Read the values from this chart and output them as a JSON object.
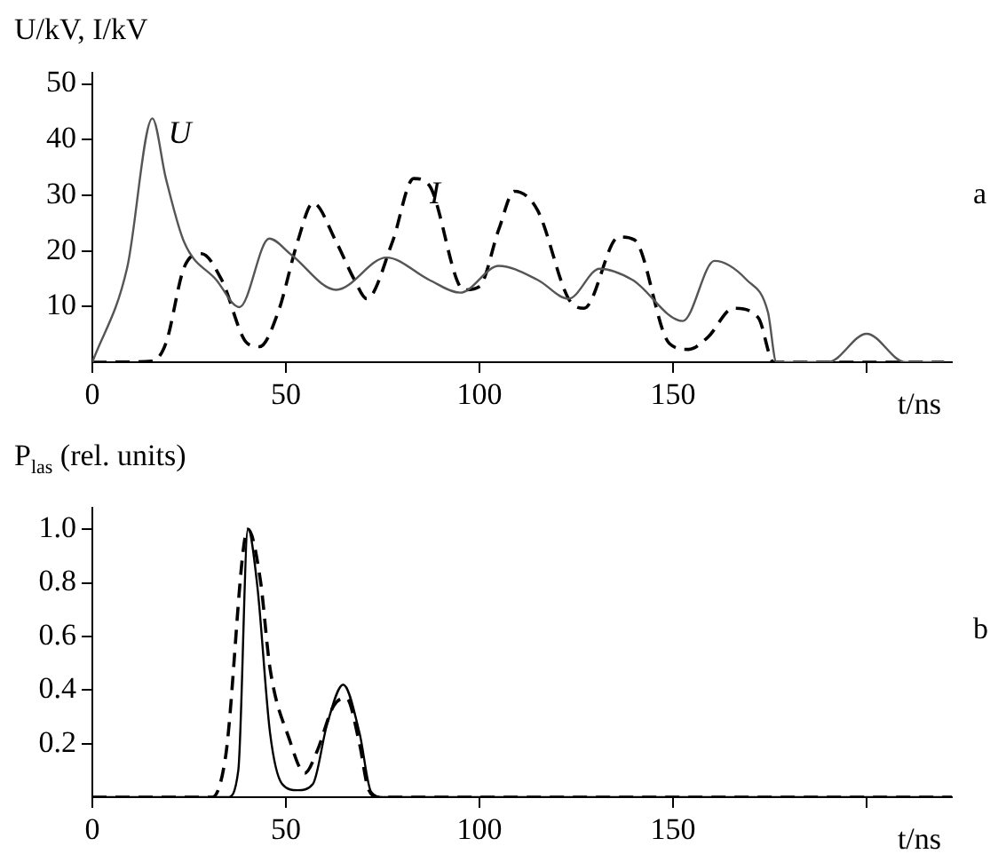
{
  "chart_data": [
    {
      "type": "line",
      "ylabel": "U/kV, I/kV",
      "xlabel": "t/ns",
      "annotations": [
        "a"
      ],
      "xlim": [
        0,
        222
      ],
      "xticks": [
        0,
        50,
        100,
        150,
        {
          "value": 200,
          "label": null
        }
      ],
      "ylim": [
        0,
        52
      ],
      "yticks": [
        10,
        20,
        30,
        40,
        50
      ],
      "grid": false,
      "legend": false,
      "marker": "none",
      "series": [
        {
          "name": "U",
          "color": "#555555",
          "line_style": "solid",
          "x": [
            0,
            9,
            15.5,
            19,
            23.7,
            32,
            38,
            45.7,
            51.4,
            63,
            76,
            87,
            95,
            105,
            115,
            123,
            131,
            139.5,
            152.5,
            160.7,
            169,
            174.5,
            176.7,
            190,
            200,
            210,
            220
          ],
          "values": [
            0,
            17,
            43.8,
            33,
            21.6,
            14.8,
            9.9,
            22.2,
            19.3,
            13,
            18.8,
            14.8,
            12.5,
            17.3,
            14.8,
            11.4,
            16.8,
            14.8,
            7.4,
            18.2,
            14.8,
            9,
            0,
            0,
            5.1,
            0,
            0
          ]
        },
        {
          "name": "I",
          "color": "#000000",
          "line_style": "dashed",
          "x": [
            0,
            15.5,
            19,
            23.7,
            28.2,
            33.4,
            40,
            43.2,
            48,
            53,
            57,
            63,
            67.7,
            70.9,
            77.5,
            83,
            87,
            96,
            100,
            105,
            109,
            115,
            123,
            127,
            136,
            140,
            149,
            154,
            159,
            165.6,
            172,
            176,
            220
          ],
          "values": [
            0,
            0.2,
            3.4,
            17,
            19.5,
            14.8,
            3.4,
            2.8,
            9,
            21.6,
            28.6,
            21.6,
            14.8,
            11.4,
            21.6,
            33,
            31.8,
            13,
            13.6,
            23.9,
            30.7,
            27.3,
            11.4,
            9.7,
            22.5,
            22,
            3.4,
            2.3,
            4.5,
            9.7,
            8,
            0,
            0
          ]
        }
      ]
    },
    {
      "type": "line",
      "ylabel": "P$_{las}$ (rel. units)",
      "xlabel": "t/ns",
      "annotations": [
        "b"
      ],
      "xlim": [
        0,
        222
      ],
      "xticks": [
        0,
        50,
        100,
        150,
        {
          "value": 200,
          "label": null
        }
      ],
      "ylim": [
        0,
        1.08
      ],
      "yticks": [
        0.2,
        0.4,
        0.6,
        0.8,
        {
          "value": 1.0,
          "label": "1.0"
        }
      ],
      "grid": false,
      "legend": false,
      "marker": "none",
      "series": [
        {
          "color": "#000000",
          "line_style": "solid",
          "x": [
            0,
            35,
            37.7,
            40.2,
            42.6,
            45.9,
            49,
            53,
            57,
            60.6,
            64.8,
            69,
            72,
            75,
            222
          ],
          "values": [
            0,
            0,
            0.1,
            1.0,
            0.79,
            0.24,
            0.05,
            0.026,
            0.05,
            0.27,
            0.42,
            0.24,
            0.02,
            0,
            0
          ]
        },
        {
          "color": "#000000",
          "line_style": "dashed",
          "x": [
            0,
            31,
            34.4,
            40.2,
            43.4,
            45.9,
            50.8,
            54.9,
            58,
            62.3,
            65.6,
            69,
            71.3,
            74,
            222
          ],
          "values": [
            0,
            0,
            0.15,
            1.0,
            0.81,
            0.48,
            0.22,
            0.09,
            0.17,
            0.34,
            0.37,
            0.2,
            0.03,
            0,
            0
          ]
        }
      ]
    }
  ]
}
